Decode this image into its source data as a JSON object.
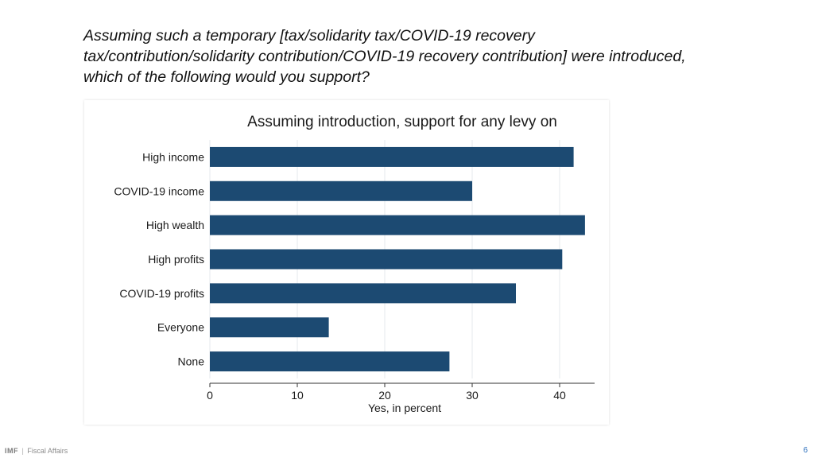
{
  "slide": {
    "heading": "Assuming such a temporary [tax/solidarity tax/COVID-19 recovery tax/contribution/solidarity contribution/COVID-19 recovery contribution] were introduced, which of the following would you support?",
    "footer_org": "IMF",
    "footer_separator": "|",
    "footer_dept": "Fiscal Affairs",
    "page_number": "6"
  },
  "chart_data": {
    "type": "bar",
    "orientation": "horizontal",
    "title": "Assuming introduction, support for any levy on",
    "xlabel": "Yes, in percent",
    "ylabel": "",
    "categories": [
      "High income",
      "COVID-19 income",
      "High wealth",
      "High profits",
      "COVID-19 profits",
      "Everyone",
      "None"
    ],
    "values": [
      41.6,
      30.0,
      42.9,
      40.3,
      35.0,
      13.6,
      27.4
    ],
    "xlim": [
      0,
      44
    ],
    "xticks": [
      0,
      10,
      20,
      30,
      40
    ],
    "grid": true,
    "bar_color": "#1c4a72",
    "grid_color": "#e4e8ee"
  }
}
